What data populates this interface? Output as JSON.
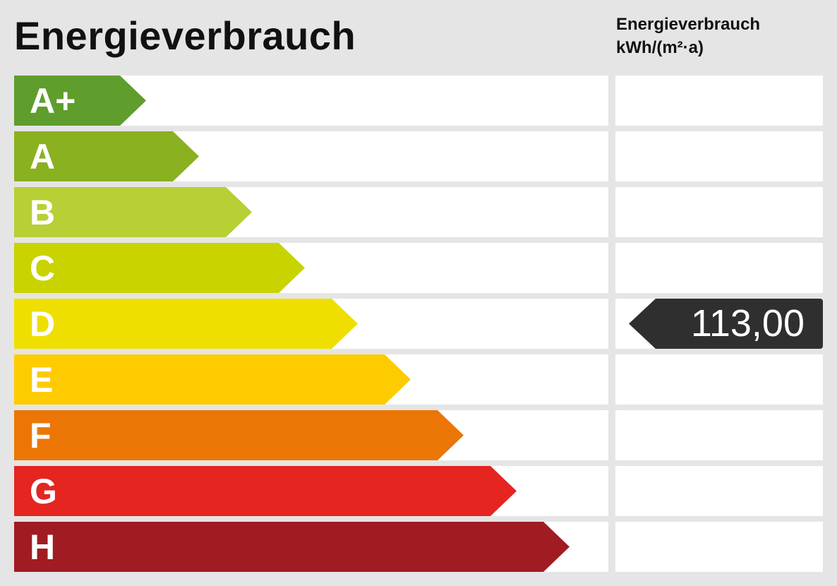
{
  "title": "Energieverbrauch",
  "column_header": {
    "line1": "Energieverbrauch",
    "line2": "kWh/(m²·a)"
  },
  "classes": [
    {
      "label": "A+",
      "color": "#5f9d2c"
    },
    {
      "label": "A",
      "color": "#8ab11f"
    },
    {
      "label": "B",
      "color": "#b8cf35"
    },
    {
      "label": "C",
      "color": "#c8d300"
    },
    {
      "label": "D",
      "color": "#efdf00"
    },
    {
      "label": "E",
      "color": "#fdcb00"
    },
    {
      "label": "F",
      "color": "#ec7605"
    },
    {
      "label": "G",
      "color": "#e42520"
    },
    {
      "label": "H",
      "color": "#a11b23"
    }
  ],
  "indicator": {
    "value": "113,00",
    "class": "D",
    "color": "#2f2f2f"
  }
}
